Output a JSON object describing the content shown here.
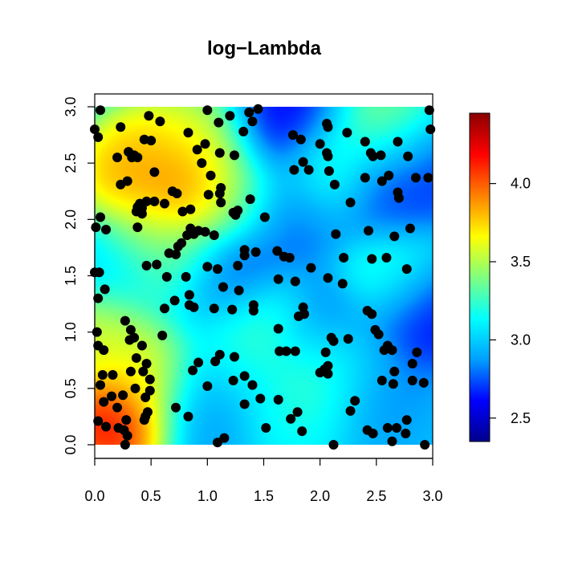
{
  "chart_data": {
    "type": "heatmap",
    "title": "log−Lambda",
    "xlabel": "",
    "ylabel": "",
    "xlim": [
      0,
      3
    ],
    "ylim": [
      0,
      3
    ],
    "x_ticks": [
      "0.0",
      "0.5",
      "1.0",
      "1.5",
      "2.0",
      "2.5",
      "3.0"
    ],
    "y_ticks": [
      "0.0",
      "0.5",
      "1.0",
      "1.5",
      "2.0",
      "2.5",
      "3.0"
    ],
    "colorbar": {
      "range": [
        2.35,
        4.45
      ],
      "ticks": [
        "2.5",
        "3.0",
        "3.5",
        "4.0"
      ],
      "palette": [
        "#00008B",
        "#0000FF",
        "#00A0FF",
        "#00FFFF",
        "#80FF80",
        "#FFFF00",
        "#FF8000",
        "#FF0000",
        "#8B0000"
      ]
    },
    "intensity_hotspots": [
      {
        "x": 0.15,
        "y": 0.2,
        "value": 4.45
      },
      {
        "x": 0.8,
        "y": 2.3,
        "value": 4.2
      },
      {
        "x": 0.3,
        "y": 2.4,
        "value": 4.0
      },
      {
        "x": 0.55,
        "y": 2.6,
        "value": 3.8
      },
      {
        "x": 0.5,
        "y": 1.9,
        "value": 3.6
      },
      {
        "x": 0.95,
        "y": 2.7,
        "value": 3.6
      },
      {
        "x": 0.02,
        "y": 1.0,
        "value": 3.7
      },
      {
        "x": 0.45,
        "y": 0.6,
        "value": 3.7
      },
      {
        "x": 1.2,
        "y": 2.2,
        "value": 3.45
      },
      {
        "x": 2.05,
        "y": 0.7,
        "value": 3.55
      },
      {
        "x": 1.45,
        "y": 1.1,
        "value": 3.5
      },
      {
        "x": 2.7,
        "y": 2.85,
        "value": 3.55
      },
      {
        "x": 2.1,
        "y": 2.45,
        "value": 3.3
      },
      {
        "x": 2.65,
        "y": 1.5,
        "value": 3.35
      },
      {
        "x": 0.75,
        "y": 1.6,
        "value": 3.3
      },
      {
        "x": 1.75,
        "y": 0.3,
        "value": 3.2
      },
      {
        "x": 1.3,
        "y": 0.75,
        "value": 3.15
      },
      {
        "x": 1.65,
        "y": 2.85,
        "value": 2.5
      },
      {
        "x": 1.25,
        "y": 1.45,
        "value": 2.55
      },
      {
        "x": 2.9,
        "y": 1.2,
        "value": 2.5
      },
      {
        "x": 2.0,
        "y": 1.0,
        "value": 2.65
      },
      {
        "x": 2.6,
        "y": 2.2,
        "value": 2.65
      },
      {
        "x": 1.75,
        "y": 2.0,
        "value": 2.75
      },
      {
        "x": 1.0,
        "y": 0.35,
        "value": 2.85
      },
      {
        "x": 2.4,
        "y": 0.55,
        "value": 2.8
      },
      {
        "x": 0.15,
        "y": 1.6,
        "value": 3.0
      },
      {
        "x": 2.95,
        "y": 2.55,
        "value": 2.6
      }
    ],
    "points": [
      [
        0.05,
        2.97
      ],
      [
        0.0,
        2.8
      ],
      [
        0.03,
        2.73
      ],
      [
        0.23,
        2.82
      ],
      [
        0.48,
        2.92
      ],
      [
        0.58,
        2.87
      ],
      [
        0.83,
        2.77
      ],
      [
        1.0,
        2.97
      ],
      [
        1.1,
        2.86
      ],
      [
        1.2,
        2.92
      ],
      [
        1.37,
        2.95
      ],
      [
        1.45,
        2.98
      ],
      [
        1.4,
        2.87
      ],
      [
        1.32,
        2.78
      ],
      [
        1.76,
        2.75
      ],
      [
        1.83,
        2.71
      ],
      [
        2.0,
        2.67
      ],
      [
        2.07,
        2.82
      ],
      [
        2.06,
        2.85
      ],
      [
        2.24,
        2.77
      ],
      [
        2.4,
        2.69
      ],
      [
        2.45,
        2.59
      ],
      [
        2.47,
        2.56
      ],
      [
        2.54,
        2.57
      ],
      [
        2.69,
        2.69
      ],
      [
        2.97,
        2.97
      ],
      [
        2.98,
        2.8
      ],
      [
        0.3,
        2.6
      ],
      [
        0.33,
        2.55
      ],
      [
        0.38,
        2.55
      ],
      [
        0.2,
        2.55
      ],
      [
        0.35,
        2.57
      ],
      [
        0.44,
        2.71
      ],
      [
        0.5,
        2.7
      ],
      [
        0.53,
        2.42
      ],
      [
        0.23,
        2.31
      ],
      [
        0.29,
        2.34
      ],
      [
        0.69,
        2.25
      ],
      [
        0.73,
        2.23
      ],
      [
        0.91,
        2.62
      ],
      [
        0.95,
        2.5
      ],
      [
        0.98,
        2.67
      ],
      [
        1.03,
        2.39
      ],
      [
        1.11,
        2.59
      ],
      [
        1.24,
        2.57
      ],
      [
        1.12,
        2.28
      ],
      [
        1.11,
        2.23
      ],
      [
        1.01,
        2.22
      ],
      [
        1.12,
        2.15
      ],
      [
        1.25,
        2.04
      ],
      [
        1.23,
        2.06
      ],
      [
        1.27,
        2.08
      ],
      [
        1.38,
        2.18
      ],
      [
        1.51,
        2.02
      ],
      [
        1.77,
        2.44
      ],
      [
        1.85,
        2.51
      ],
      [
        1.9,
        2.44
      ],
      [
        2.06,
        2.59
      ],
      [
        2.07,
        2.56
      ],
      [
        2.08,
        2.43
      ],
      [
        2.13,
        2.31
      ],
      [
        2.4,
        2.37
      ],
      [
        2.55,
        2.34
      ],
      [
        2.61,
        2.39
      ],
      [
        2.69,
        2.24
      ],
      [
        2.7,
        2.19
      ],
      [
        2.78,
        2.56
      ],
      [
        2.85,
        2.37
      ],
      [
        2.96,
        2.37
      ],
      [
        2.8,
        1.92
      ],
      [
        2.66,
        1.85
      ],
      [
        2.77,
        1.56
      ],
      [
        2.59,
        1.66
      ],
      [
        2.46,
        1.65
      ],
      [
        2.43,
        1.9
      ],
      [
        2.27,
        2.15
      ],
      [
        0.4,
        2.14
      ],
      [
        0.38,
        2.11
      ],
      [
        0.37,
        2.07
      ],
      [
        0.42,
        2.05
      ],
      [
        0.46,
        2.16
      ],
      [
        0.53,
        2.16
      ],
      [
        0.42,
        2.1
      ],
      [
        0.62,
        2.14
      ],
      [
        0.78,
        2.07
      ],
      [
        0.85,
        2.09
      ],
      [
        0.85,
        1.92
      ],
      [
        0.82,
        1.86
      ],
      [
        0.88,
        1.87
      ],
      [
        0.92,
        1.9
      ],
      [
        0.98,
        1.89
      ],
      [
        1.06,
        1.86
      ],
      [
        0.77,
        1.79
      ],
      [
        0.74,
        1.76
      ],
      [
        0.66,
        1.7
      ],
      [
        0.72,
        1.69
      ],
      [
        0.38,
        1.93
      ],
      [
        0.05,
        2.02
      ],
      [
        0.01,
        1.93
      ],
      [
        0.1,
        1.91
      ],
      [
        0.0,
        1.53
      ],
      [
        0.04,
        1.53
      ],
      [
        0.09,
        1.38
      ],
      [
        0.03,
        1.3
      ],
      [
        0.46,
        1.59
      ],
      [
        0.55,
        1.6
      ],
      [
        0.64,
        1.49
      ],
      [
        0.81,
        1.49
      ],
      [
        1.0,
        1.58
      ],
      [
        1.09,
        1.56
      ],
      [
        1.27,
        1.59
      ],
      [
        1.33,
        1.73
      ],
      [
        1.43,
        1.71
      ],
      [
        1.33,
        1.68
      ],
      [
        1.62,
        1.72
      ],
      [
        1.68,
        1.67
      ],
      [
        1.73,
        1.66
      ],
      [
        1.63,
        1.47
      ],
      [
        1.78,
        1.45
      ],
      [
        1.92,
        1.57
      ],
      [
        2.07,
        1.48
      ],
      [
        2.21,
        1.66
      ],
      [
        2.2,
        1.43
      ],
      [
        2.14,
        1.87
      ],
      [
        0.02,
        1.0
      ],
      [
        0.03,
        0.88
      ],
      [
        0.08,
        0.84
      ],
      [
        0.27,
        1.1
      ],
      [
        0.32,
        1.02
      ],
      [
        0.35,
        0.95
      ],
      [
        0.31,
        0.93
      ],
      [
        0.42,
        0.88
      ],
      [
        0.6,
        0.97
      ],
      [
        0.62,
        1.21
      ],
      [
        0.71,
        1.28
      ],
      [
        0.84,
        1.24
      ],
      [
        0.88,
        1.22
      ],
      [
        0.84,
        1.33
      ],
      [
        1.06,
        1.21
      ],
      [
        1.14,
        1.4
      ],
      [
        1.22,
        1.2
      ],
      [
        1.28,
        1.37
      ],
      [
        1.41,
        1.24
      ],
      [
        1.41,
        1.19
      ],
      [
        1.81,
        1.14
      ],
      [
        1.86,
        1.16
      ],
      [
        1.85,
        1.22
      ],
      [
        1.63,
        1.03
      ],
      [
        1.64,
        0.83
      ],
      [
        1.7,
        0.83
      ],
      [
        1.78,
        0.83
      ],
      [
        2.05,
        0.82
      ],
      [
        2.1,
        0.95
      ],
      [
        2.12,
        0.92
      ],
      [
        2.25,
        0.94
      ],
      [
        2.42,
        1.19
      ],
      [
        2.46,
        1.16
      ],
      [
        2.49,
        1.02
      ],
      [
        2.52,
        0.98
      ],
      [
        2.57,
        0.84
      ],
      [
        2.6,
        0.88
      ],
      [
        2.64,
        0.84
      ],
      [
        2.86,
        0.82
      ],
      [
        2.82,
        0.57
      ],
      [
        2.92,
        0.55
      ],
      [
        2.82,
        0.72
      ],
      [
        2.66,
        0.65
      ],
      [
        2.65,
        0.54
      ],
      [
        2.55,
        0.57
      ],
      [
        0.07,
        0.62
      ],
      [
        0.16,
        0.62
      ],
      [
        0.32,
        0.65
      ],
      [
        0.37,
        0.77
      ],
      [
        0.36,
        0.5
      ],
      [
        0.43,
        0.65
      ],
      [
        0.46,
        0.72
      ],
      [
        0.49,
        0.58
      ],
      [
        0.49,
        0.48
      ],
      [
        0.45,
        0.42
      ],
      [
        0.47,
        0.29
      ],
      [
        0.44,
        0.22
      ],
      [
        0.45,
        0.25
      ],
      [
        0.25,
        0.44
      ],
      [
        0.15,
        0.43
      ],
      [
        0.08,
        0.38
      ],
      [
        0.05,
        0.53
      ],
      [
        0.03,
        0.21
      ],
      [
        0.1,
        0.16
      ],
      [
        0.2,
        0.33
      ],
      [
        0.21,
        0.15
      ],
      [
        0.28,
        0.22
      ],
      [
        0.26,
        0.13
      ],
      [
        0.29,
        0.08
      ],
      [
        0.27,
        0.0
      ],
      [
        0.72,
        0.33
      ],
      [
        0.83,
        0.25
      ],
      [
        0.87,
        0.66
      ],
      [
        0.92,
        0.73
      ],
      [
        1.0,
        0.52
      ],
      [
        1.07,
        0.74
      ],
      [
        1.11,
        0.8
      ],
      [
        1.15,
        0.06
      ],
      [
        1.09,
        0.02
      ],
      [
        1.23,
        0.57
      ],
      [
        1.24,
        0.78
      ],
      [
        1.33,
        0.61
      ],
      [
        1.33,
        0.36
      ],
      [
        1.4,
        0.53
      ],
      [
        1.47,
        0.41
      ],
      [
        1.52,
        0.15
      ],
      [
        1.63,
        0.4
      ],
      [
        1.74,
        0.23
      ],
      [
        1.8,
        0.29
      ],
      [
        1.84,
        0.12
      ],
      [
        2.0,
        0.64
      ],
      [
        2.04,
        0.67
      ],
      [
        2.07,
        0.63
      ],
      [
        2.07,
        0.7
      ],
      [
        2.12,
        0.0
      ],
      [
        2.27,
        0.3
      ],
      [
        2.31,
        0.39
      ],
      [
        2.42,
        0.13
      ],
      [
        2.47,
        0.1
      ],
      [
        2.6,
        0.15
      ],
      [
        2.64,
        0.03
      ],
      [
        2.68,
        0.15
      ],
      [
        2.77,
        0.22
      ],
      [
        2.76,
        0.1
      ],
      [
        2.93,
        0.0
      ]
    ]
  }
}
